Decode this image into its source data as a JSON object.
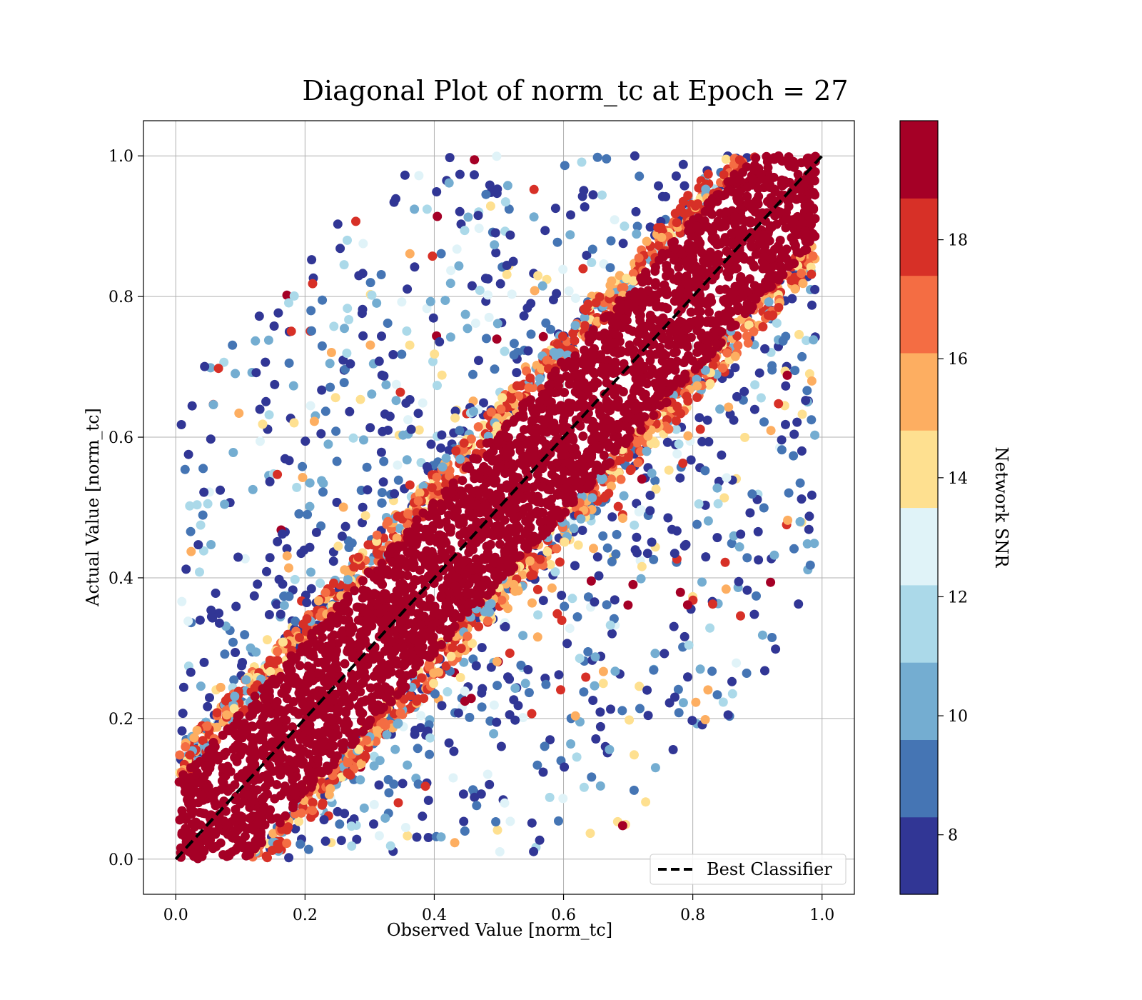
{
  "chart_data": {
    "type": "scatter",
    "title": "Diagonal Plot of norm_tc at Epoch = 27",
    "xlabel": "Observed Value [norm_tc]",
    "ylabel": "Actual Value [norm_tc]",
    "xlim": [
      -0.05,
      1.05
    ],
    "ylim": [
      -0.05,
      1.05
    ],
    "grid": true,
    "x_ticks": [
      "0.0",
      "0.2",
      "0.4",
      "0.6",
      "0.8",
      "1.0"
    ],
    "y_ticks": [
      "0.0",
      "0.2",
      "0.4",
      "0.6",
      "0.8",
      "1.0"
    ],
    "legend": {
      "placement": "lower-right",
      "entries": [
        {
          "label": "Best Classifier",
          "style": "dashed",
          "color": "#000000"
        }
      ]
    },
    "reference_line": {
      "x": [
        0,
        1
      ],
      "y": [
        0,
        1
      ]
    },
    "colorbar": {
      "label": "Network SNR",
      "range": [
        7,
        20
      ],
      "ticks": [
        "8",
        "10",
        "12",
        "14",
        "16",
        "18"
      ],
      "tick_values": [
        8,
        10,
        12,
        14,
        16,
        18
      ],
      "colors": [
        "#313695",
        "#4575b4",
        "#74add1",
        "#abd9e9",
        "#e0f3f8",
        "#fee090",
        "#fdae61",
        "#f46d43",
        "#d73027",
        "#a50026"
      ]
    },
    "series_description": {
      "points": "norm_tc observed vs actual, colored by Network SNR",
      "core_band_halfwidth": 0.12,
      "core_color": "#a50026"
    }
  }
}
